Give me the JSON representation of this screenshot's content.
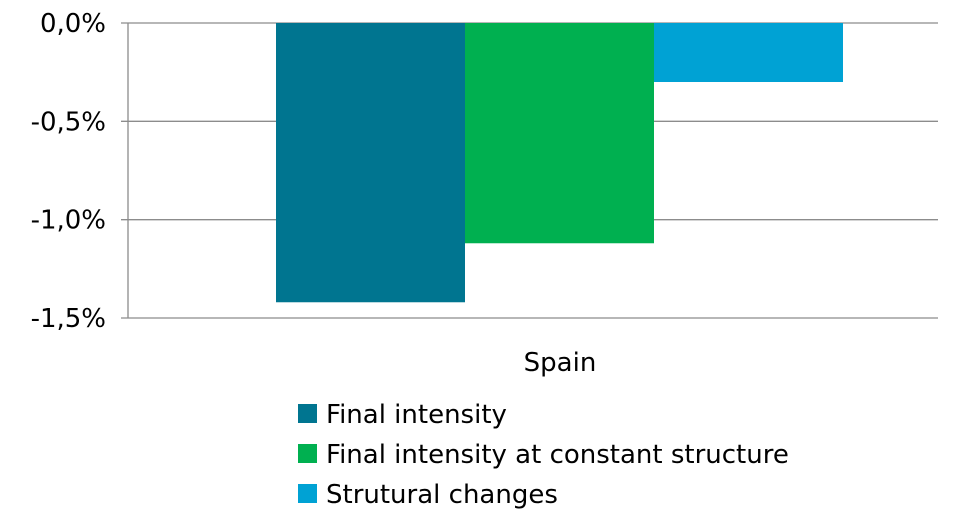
{
  "chart_data": {
    "type": "bar",
    "title": "",
    "xlabel": "",
    "ylabel": "",
    "categories": [
      "Spain"
    ],
    "series": [
      {
        "name": "Final intensity",
        "values": [
          -1.42
        ],
        "color": "#007590"
      },
      {
        "name": "Final intensity at constant structure",
        "values": [
          -1.12
        ],
        "color": "#00b050"
      },
      {
        "name": "Strutural changes",
        "values": [
          -0.3
        ],
        "color": "#00a2d4"
      }
    ],
    "ylim": [
      -1.5,
      0.0
    ],
    "yticks": [
      0.0,
      -0.5,
      -1.0,
      -1.5
    ],
    "ytick_labels": [
      "0,0%",
      "-0,5%",
      "-1,0%",
      "-1,5%"
    ],
    "grid": true,
    "legend": "bottom"
  }
}
